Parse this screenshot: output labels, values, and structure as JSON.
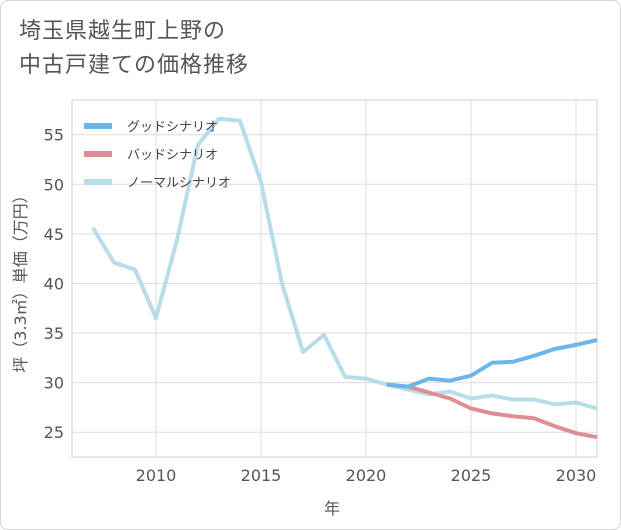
{
  "chart_data": {
    "type": "line",
    "title": [
      "埼玉県越生町上野の",
      "中古戸建ての価格推移"
    ],
    "xlabel": "年",
    "ylabel": "坪（3.3㎡）単価（万円）",
    "xlim": [
      2006,
      2031
    ],
    "ylim": [
      22.5,
      58.5
    ],
    "xticks": [
      2010,
      2015,
      2020,
      2025,
      2030
    ],
    "yticks": [
      25,
      30,
      35,
      40,
      45,
      50,
      55
    ],
    "grid": true,
    "legend_position": "top-left",
    "series": [
      {
        "name": "グッドシナリオ",
        "color": "#6cb6ea",
        "x": [
          2021,
          2022,
          2023,
          2024,
          2025,
          2026,
          2027,
          2028,
          2029,
          2030,
          2031
        ],
        "y": [
          29.8,
          29.6,
          30.4,
          30.2,
          30.7,
          32.0,
          32.1,
          32.7,
          33.4,
          33.8,
          34.3
        ]
      },
      {
        "name": "バッドシナリオ",
        "color": "#de8e92",
        "x": [
          2021,
          2022,
          2023,
          2024,
          2025,
          2026,
          2027,
          2028,
          2029,
          2030,
          2031
        ],
        "y": [
          29.8,
          29.6,
          29.0,
          28.4,
          27.4,
          26.9,
          26.6,
          26.4,
          25.6,
          24.9,
          24.5
        ]
      },
      {
        "name": "ノーマルシナリオ",
        "color": "#b9dcea",
        "x": [
          2007,
          2008,
          2009,
          2010,
          2011,
          2012,
          2013,
          2014,
          2015,
          2016,
          2017,
          2018,
          2019,
          2020,
          2021,
          2022,
          2023,
          2024,
          2025,
          2026,
          2027,
          2028,
          2029,
          2030,
          2031
        ],
        "y": [
          45.6,
          42.1,
          41.4,
          36.5,
          44.4,
          54.0,
          56.6,
          56.4,
          50.2,
          40.0,
          33.1,
          34.8,
          30.6,
          30.4,
          29.8,
          29.3,
          28.8,
          29.1,
          28.4,
          28.7,
          28.3,
          28.3,
          27.8,
          28.0,
          27.4
        ]
      }
    ]
  }
}
